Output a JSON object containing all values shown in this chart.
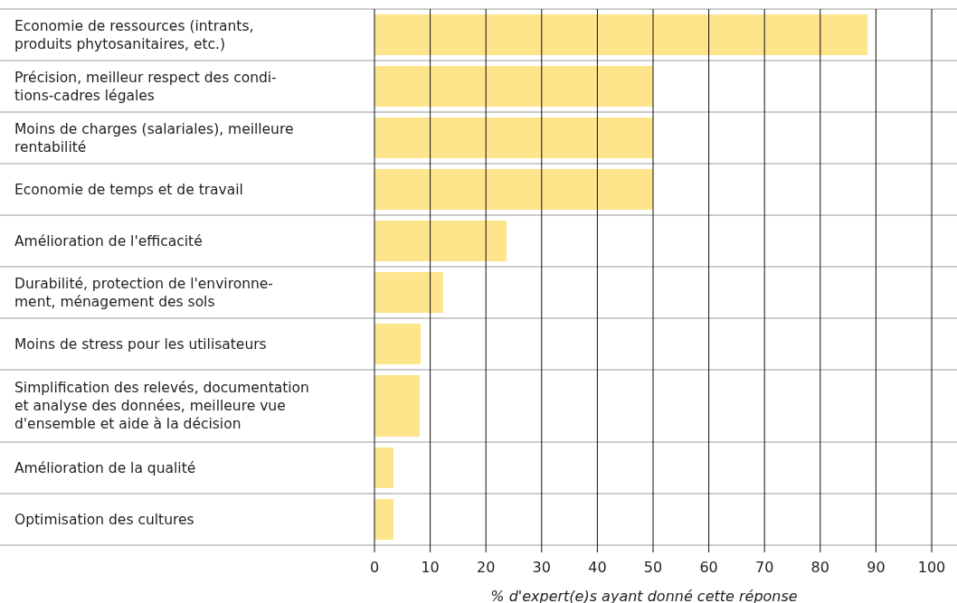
{
  "chart_data": {
    "type": "bar",
    "orientation": "horizontal",
    "xlabel": "% d'expert(e)s ayant donné cette réponse",
    "categories": [
      "Economie de ressources (intrants,\nproduits phytosanitaires, etc.)",
      "Précision, meilleur respect des condi-\ntions-cadres légales",
      "Moins de charges (salariales), meilleure\nrentabilité",
      "Economie de temps et de travail",
      "Amélioration de l'efficacité",
      "Durabilité, protection de l'environne-\nment, ménagement des sols",
      "Moins de stress pour les utilisateurs",
      "Simplification des relevés, documentation\net analyse des données, meilleure vue\nd'ensemble et aide à la décision",
      "Amélioration de la qualité",
      "Optimisation des cultures"
    ],
    "values": [
      88.5,
      50,
      50,
      50,
      23.7,
      12.3,
      8.3,
      8.1,
      3.4,
      3.4
    ],
    "color": "#fee48a",
    "xlim": [
      0,
      100
    ],
    "xticks": [
      0,
      10,
      20,
      30,
      40,
      50,
      60,
      70,
      80,
      90,
      100
    ],
    "grid": true
  }
}
